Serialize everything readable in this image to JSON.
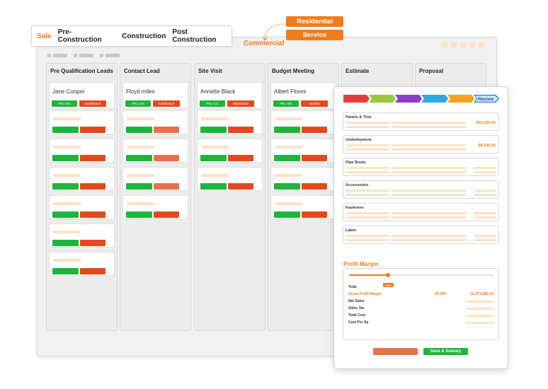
{
  "nav": {
    "tabs": [
      "Sale",
      "Pre- Construction",
      "Construction",
      "Post Construction"
    ],
    "active": "Sale"
  },
  "tags": {
    "residential": "Residential",
    "service": "Service",
    "commercial": "Commercial"
  },
  "board": {
    "columns": [
      {
        "title": "Pre Qualification Leads",
        "card": {
          "name": "Jane Cooper",
          "id": "PRL-101",
          "date": "02/28/2022"
        }
      },
      {
        "title": "Contact Lead",
        "card": {
          "name": "Floyd miles",
          "id": "PRL-105",
          "date": "02/28/2022"
        }
      },
      {
        "title": "Site Visit",
        "card": {
          "name": "Annette Black",
          "id": "PRL-121",
          "date": "05/28/2022"
        }
      },
      {
        "title": "Budget Meeting",
        "card": {
          "name": "Albert Flores",
          "id": "PRL-301",
          "date": "02/28/2"
        }
      },
      {
        "title": "Estimate"
      },
      {
        "title": "Proposal"
      }
    ]
  },
  "panel": {
    "steps": {
      "last_label": "Review"
    },
    "sections": [
      {
        "title": "Panels & Trim",
        "value": "$30,150.00"
      },
      {
        "title": "Underlayment",
        "value": "$8,240.40"
      },
      {
        "title": "Pipe Boots",
        "value": ""
      },
      {
        "title": "Accessories",
        "value": ""
      },
      {
        "title": "Fasteners",
        "value": ""
      },
      {
        "title": "Labor",
        "value": ""
      }
    ],
    "profit_margin": {
      "title": "Profit Margin",
      "slider_value": "20%",
      "slider_fraction": 0.27,
      "rows": [
        {
          "label": "Total"
        },
        {
          "label": "Gross Profit Margin",
          "percent": "20.00%",
          "amount": "$1,474,982.15"
        },
        {
          "label": "Net Sales"
        },
        {
          "label": "Sales Tax"
        },
        {
          "label": "Total Cost"
        },
        {
          "label": "Cost Per Sq"
        }
      ]
    },
    "save_button": "Save & Sumary"
  },
  "colors": {
    "accent": "#f07c1c",
    "green": "#1db53c",
    "red": "#e2491d",
    "step_colors": [
      "#e24040",
      "#9bc93a",
      "#8a3fc9",
      "#2fa7e0",
      "#f7a31c",
      "#1e7fe0"
    ]
  }
}
